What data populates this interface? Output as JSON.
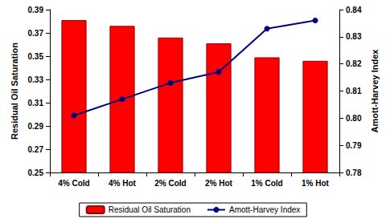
{
  "chart_data": {
    "type": "bar",
    "categories": [
      "4% Cold",
      "4% Hot",
      "2% Cold",
      "2% Hot",
      "1% Cold",
      "1% Hot"
    ],
    "series": [
      {
        "name": "Residual Oil Saturation",
        "type": "bar",
        "color": "#ff0000",
        "values": [
          0.381,
          0.376,
          0.366,
          0.361,
          0.349,
          0.346
        ]
      },
      {
        "name": "Amott-Harvey Index",
        "type": "line",
        "color": "#000080",
        "marker": "circle",
        "axis": "y2",
        "values": [
          0.801,
          0.807,
          0.813,
          0.817,
          0.833,
          0.836
        ]
      }
    ],
    "ylabel": "Residual Oil Saturation",
    "y2label": "Amott-Harvey Index",
    "ylim": [
      0.25,
      0.39
    ],
    "yticks": [
      0.25,
      0.27,
      0.29,
      0.31,
      0.33,
      0.35,
      0.37,
      0.39
    ],
    "y2lim": [
      0.78,
      0.84
    ],
    "y2ticks": [
      0.78,
      0.79,
      0.8,
      0.81,
      0.82,
      0.83,
      0.84
    ],
    "grid": false,
    "legend": "bottom"
  }
}
